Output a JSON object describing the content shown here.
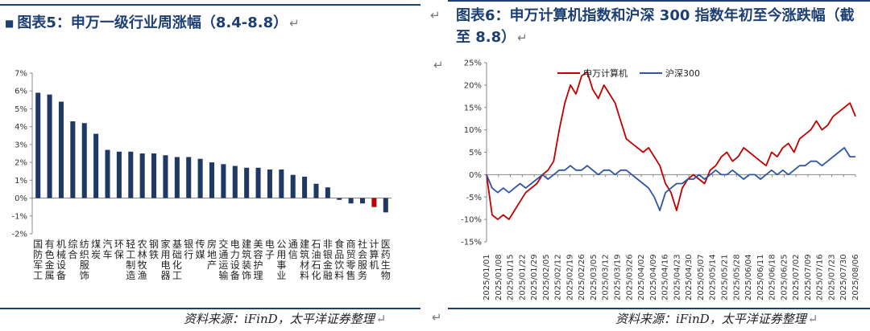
{
  "left": {
    "title": "图表5：申万一级行业周涨幅（8.4-8.8）",
    "source": "资料来源：iFinD，太平洋证券整理"
  },
  "right": {
    "title": "图表6：申万计算机指数和沪深 300 指数年初至今涨跌幅（截至 8.8）",
    "source": "资料来源：iFinD，太平洋证券整理"
  },
  "return_mark": "↵",
  "colors": {
    "title": "#1d3f73",
    "bar_positive": "#1f3864",
    "bar_negative": "#c00000",
    "line_computer": "#c00000",
    "line_hs300": "#2f55a4",
    "rule": "#1d3f73"
  },
  "chart_data": [
    {
      "type": "bar",
      "categories": [
        "国防军工",
        "有色金属",
        "机械设备",
        "综合",
        "纺织服饰",
        "煤炭",
        "汽车",
        "环保",
        "轻工制造",
        "农林牧渔",
        "钢铁",
        "家用电器",
        "基础化工",
        "银行",
        "传媒",
        "房地产",
        "交通运输",
        "电力设备",
        "建筑装饰",
        "美容护理",
        "电子",
        "公用事业",
        "通信",
        "建筑材料",
        "石油石化",
        "非银金融",
        "食品饮料",
        "商贸零售",
        "社会服务",
        "计算机",
        "医药生物"
      ],
      "values": [
        5.9,
        5.8,
        5.4,
        4.3,
        4.2,
        3.6,
        2.7,
        2.6,
        2.6,
        2.5,
        2.5,
        2.4,
        2.3,
        2.3,
        2.2,
        2.0,
        1.9,
        1.8,
        1.7,
        1.7,
        1.6,
        1.6,
        1.3,
        1.2,
        0.8,
        0.6,
        -0.1,
        -0.3,
        -0.3,
        -0.5,
        -0.8
      ],
      "highlight_category": "计算机",
      "ylim": [
        -2,
        7
      ],
      "yticks": [
        "-2%",
        "-1%",
        "0%",
        "1%",
        "2%",
        "3%",
        "4%",
        "5%",
        "6%",
        "7%"
      ],
      "grid": false
    },
    {
      "type": "line",
      "ylim": [
        -15,
        25
      ],
      "yticks": [
        "-15%",
        "-10%",
        "-5%",
        "0%",
        "5%",
        "10%",
        "15%",
        "20%",
        "25%"
      ],
      "xticks": [
        "2025/01/01",
        "2025/01/08",
        "2025/01/15",
        "2025/01/22",
        "2025/01/29",
        "2025/02/05",
        "2025/02/12",
        "2025/02/19",
        "2025/02/26",
        "2025/03/05",
        "2025/03/12",
        "2025/03/19",
        "2025/03/26",
        "2025/04/02",
        "2025/04/09",
        "2025/04/16",
        "2025/04/23",
        "2025/04/30",
        "2025/05/07",
        "2025/05/14",
        "2025/05/21",
        "2025/05/28",
        "2025/06/04",
        "2025/06/11",
        "2025/06/18",
        "2025/06/25",
        "2025/07/02",
        "2025/07/09",
        "2025/07/16",
        "2025/07/23",
        "2025/07/30",
        "2025/08/06"
      ],
      "legend_position": "top-left",
      "grid": false,
      "series": [
        {
          "name": "申万计算机",
          "values": [
            0,
            -9,
            -10,
            -9,
            -10,
            -8,
            -6,
            -4,
            -3,
            -2,
            0,
            1,
            3,
            10,
            16,
            20,
            18,
            22,
            23,
            19,
            17,
            20,
            18,
            16,
            12,
            8,
            7,
            6,
            5,
            6,
            4,
            2,
            -2,
            -4,
            -8,
            -3,
            -1,
            0,
            -1,
            -2,
            1,
            2,
            4,
            5,
            3,
            4,
            6,
            5,
            4,
            3,
            2,
            5,
            4,
            6,
            7,
            5,
            8,
            9,
            10,
            12,
            10,
            11,
            13,
            14,
            15,
            16,
            13
          ]
        },
        {
          "name": "沪深300",
          "values": [
            0,
            -3,
            -4,
            -3,
            -4,
            -3,
            -2,
            -3,
            -2,
            -1,
            0,
            -1,
            0,
            1,
            1,
            2,
            1,
            1,
            2,
            1,
            0,
            1,
            1,
            0,
            1,
            1,
            0,
            -1,
            -2,
            -3,
            -5,
            -8,
            -4,
            -3,
            -2,
            -2,
            -1,
            -1,
            0,
            -1,
            0,
            1,
            0,
            0,
            1,
            0,
            -1,
            0,
            0,
            -1,
            0,
            1,
            0,
            1,
            0,
            1,
            2,
            2,
            3,
            3,
            2,
            3,
            4,
            5,
            6,
            4,
            4
          ]
        }
      ]
    }
  ]
}
